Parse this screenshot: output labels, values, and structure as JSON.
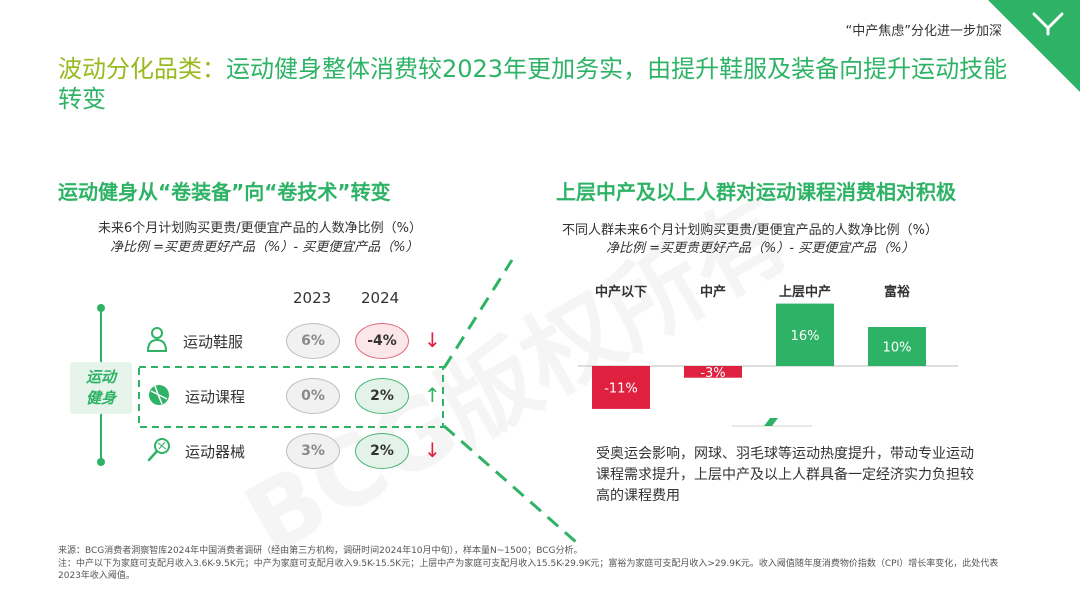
{
  "header": {
    "section_tag": "“中产焦虑”分化进一步加深"
  },
  "title": {
    "part1": "波动分化品类：",
    "part2": "运动健身整体消费较2023年更加务实，由提升鞋服及装备向提升运动技能转变"
  },
  "left": {
    "subtitle": "运动健身从“卷装备”向“卷技术”转变",
    "note1": "未来6个月计划购买更贵/更便宜产品的人数净比例（%）",
    "note2": "净比例 =买更贵更好产品（%）- 买更便宜产品（%）",
    "years": [
      "2023",
      "2024"
    ],
    "tag": [
      "运动",
      "健身"
    ],
    "rows": [
      {
        "label": "运动鞋服",
        "v2023": "6%",
        "v2024": "-4%",
        "trend": "↓"
      },
      {
        "label": "运动课程",
        "v2023": "0%",
        "v2024": "2%",
        "trend": "↑"
      },
      {
        "label": "运动器械",
        "v2023": "3%",
        "v2024": "2%",
        "trend": "↓"
      }
    ]
  },
  "right": {
    "subtitle": "上层中产及以上人群对运动课程消费相对积极",
    "note1": "不同人群未来6个月计划购买更贵/更便宜产品的人数净比例（%）",
    "note2": "净比例 =买更贵更好产品（%）- 买更便宜产品（%）",
    "body": "受奥运会影响，网球、羽毛球等运动热度提升，带动专业运动课程需求提升，上层中产及以上人群具备一定经济实力负担较高的课程费用"
  },
  "chart_data": {
    "type": "bar",
    "categories": [
      "中产以下",
      "中产",
      "上层中产",
      "富裕"
    ],
    "values": [
      -11,
      -3,
      16,
      10
    ],
    "labels": [
      "-11%",
      "-3%",
      "16%",
      "10%"
    ],
    "colors": [
      "#e0203f",
      "#e0203f",
      "#2eb366",
      "#2eb366"
    ]
  },
  "footer": {
    "source": "来源：BCG消费者洞察智库2024年中国消费者调研（经由第三方机构，调研时间2024年10月中旬），样本量N~1500；BCG分析。",
    "note": "注：中产以下为家庭可支配月收入3.6K-9.5K元；中产为家庭可支配月收入9.5K-15.5K元；上层中产为家庭可支配月收入15.5K-29.9K元；富裕为家庭可支配月收入>29.9K元。收入阈值随年度消费物价指数（CPI）增长率变化，此处代表2023年收入阈值。"
  },
  "watermark": "BCG版权所有"
}
